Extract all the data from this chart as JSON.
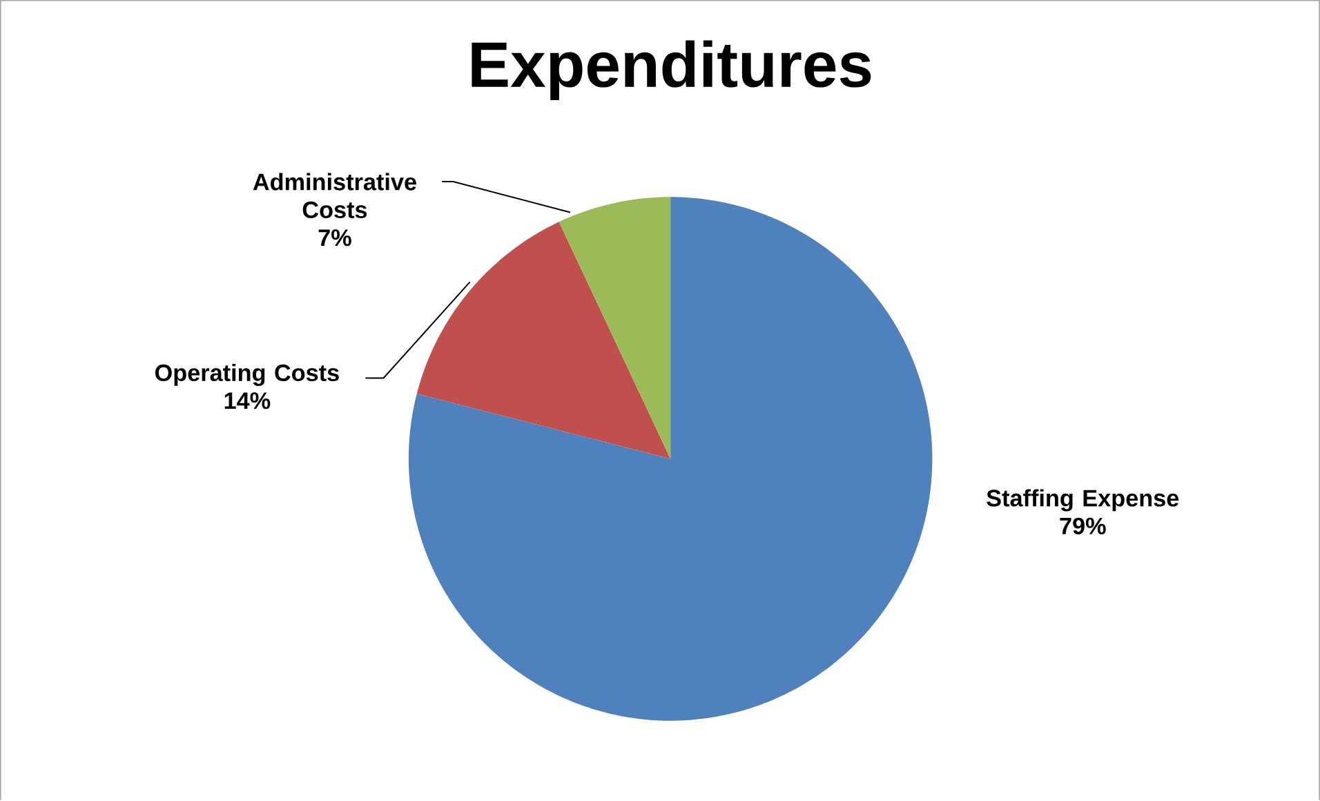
{
  "chart_data": {
    "type": "pie",
    "title": "Expenditures",
    "categories": [
      "Staffing Expense",
      "Operating Costs",
      "Administrative Costs"
    ],
    "values": [
      79,
      14,
      7
    ],
    "value_labels": [
      "79%",
      "14%",
      "7%"
    ],
    "colors": [
      "#4f81bd",
      "#c0504d",
      "#9bbb59"
    ]
  }
}
